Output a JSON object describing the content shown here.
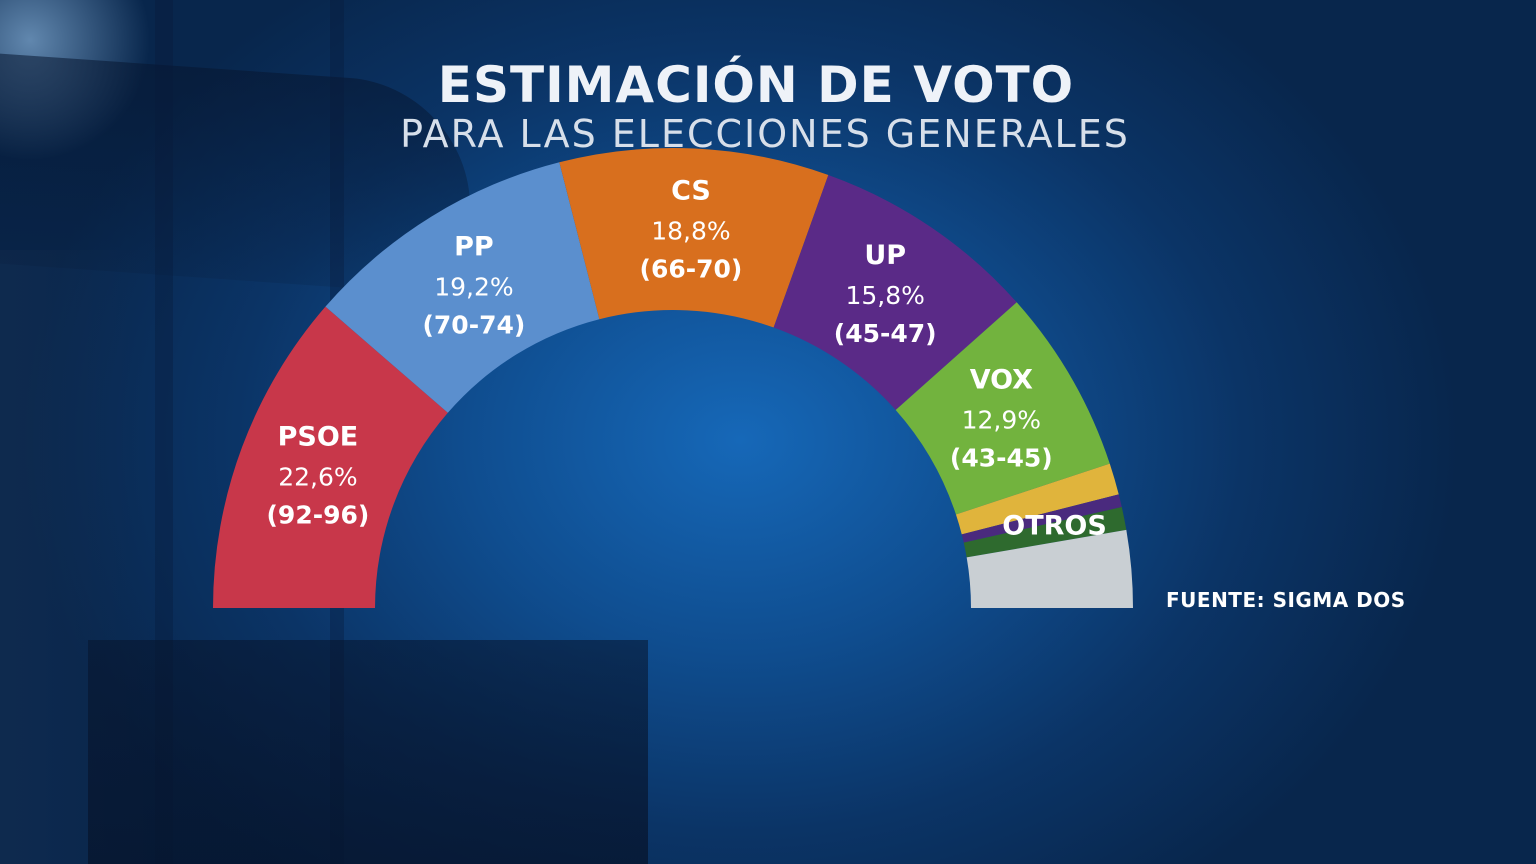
{
  "title": "ESTIMACIÓN DE VOTO",
  "subtitle": "PARA LAS ELECCIONES GENERALES",
  "source": "FUENTE: SIGMA DOS",
  "colors": {
    "background": "#0b3466",
    "text": "#ffffff"
  },
  "chart_data": {
    "type": "pie",
    "style": "hemicycle",
    "title": "ESTIMACIÓN DE VOTO",
    "subtitle": "PARA LAS ELECCIONES GENERALES",
    "series": [
      {
        "name": "PSOE",
        "value_label": "22,6%",
        "value": 22.6,
        "seats_label": "(92-96)",
        "seats_min": 92,
        "seats_max": 96,
        "color": "#c8374a"
      },
      {
        "name": "PP",
        "value_label": "19,2%",
        "value": 19.2,
        "seats_label": "(70-74)",
        "seats_min": 70,
        "seats_max": 74,
        "color": "#5b8fce"
      },
      {
        "name": "CS",
        "value_label": "18,8%",
        "value": 18.8,
        "seats_label": "(66-70)",
        "seats_min": 66,
        "seats_max": 70,
        "color": "#d86f1e"
      },
      {
        "name": "UP",
        "value_label": "15,8%",
        "value": 15.8,
        "seats_label": "(45-47)",
        "seats_min": 45,
        "seats_max": 47,
        "color": "#5a2a87"
      },
      {
        "name": "VOX",
        "value_label": "12,9%",
        "value": 12.9,
        "seats_label": "(43-45)",
        "seats_min": 43,
        "seats_max": 45,
        "color": "#72b33e"
      }
    ],
    "others": {
      "name": "OTROS",
      "segments": [
        {
          "value": 2.2,
          "color": "#e0b43c"
        },
        {
          "value": 0.9,
          "color": "#4a2a7e"
        },
        {
          "value": 1.6,
          "color": "#2e6a2e"
        },
        {
          "value": 5.4,
          "color": "#c9cfd3"
        }
      ]
    }
  }
}
